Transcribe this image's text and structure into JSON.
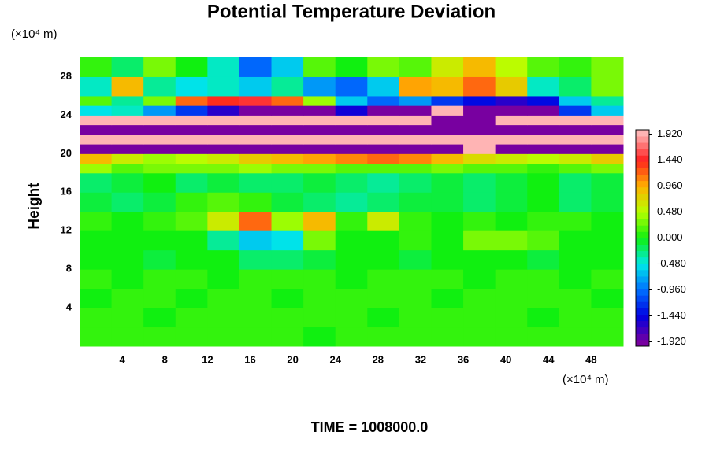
{
  "chart_data": {
    "type": "heatmap",
    "title": "Potential Temperature Deviation",
    "x_unit": "(×10⁴ m)",
    "y_unit": "(×10⁴ m)",
    "y_label": "Height",
    "footer": "TIME = 1008000.0",
    "xlim": [
      0,
      51
    ],
    "ylim": [
      0,
      30
    ],
    "xticks": [
      4,
      8,
      12,
      16,
      20,
      24,
      28,
      32,
      36,
      40,
      44,
      48
    ],
    "yticks": [
      4,
      8,
      12,
      16,
      20,
      24,
      28
    ],
    "xbins": [
      0,
      3,
      6,
      9,
      12,
      15,
      18,
      21,
      24,
      27,
      30,
      33,
      36,
      39,
      42,
      45,
      48,
      51
    ],
    "ybins": [
      0,
      2,
      4,
      6,
      8,
      10,
      12,
      14,
      16,
      18,
      19,
      20,
      21,
      22,
      23,
      24,
      25,
      26,
      28,
      30
    ],
    "values": [
      [
        0.1,
        0.1,
        0.1,
        0.1,
        0.1,
        0.1,
        0.1,
        0.0,
        0.1,
        0.1,
        0.1,
        0.1,
        0.1,
        0.1,
        0.1,
        0.1,
        0.1
      ],
      [
        0.1,
        0.1,
        0.0,
        0.1,
        0.1,
        0.1,
        0.1,
        0.1,
        0.1,
        0.0,
        0.1,
        0.1,
        0.1,
        0.1,
        0.0,
        0.1,
        0.1
      ],
      [
        0.0,
        0.1,
        0.1,
        0.0,
        0.1,
        0.1,
        0.0,
        0.1,
        0.1,
        0.1,
        0.1,
        0.0,
        0.1,
        0.1,
        0.1,
        0.1,
        0.0
      ],
      [
        0.1,
        0.0,
        0.1,
        0.1,
        0.0,
        0.1,
        0.1,
        0.1,
        0.0,
        0.1,
        0.1,
        0.1,
        0.0,
        0.1,
        0.1,
        0.0,
        0.1
      ],
      [
        0.0,
        0.0,
        -0.1,
        0.0,
        0.0,
        -0.2,
        -0.2,
        -0.1,
        0.0,
        0.0,
        -0.1,
        0.0,
        0.0,
        0.0,
        -0.1,
        0.0,
        0.0
      ],
      [
        0.0,
        0.0,
        0.0,
        0.0,
        -0.3,
        -0.6,
        -0.5,
        0.3,
        0.0,
        0.0,
        0.1,
        0.0,
        0.3,
        0.3,
        0.2,
        0.0,
        0.0
      ],
      [
        0.1,
        0.0,
        0.1,
        0.2,
        0.6,
        1.2,
        0.4,
        0.9,
        0.1,
        0.6,
        0.1,
        0.0,
        0.1,
        0.0,
        0.1,
        0.1,
        0.0
      ],
      [
        -0.1,
        -0.2,
        -0.1,
        0.1,
        0.2,
        0.1,
        -0.1,
        -0.2,
        -0.3,
        -0.2,
        -0.1,
        -0.1,
        -0.2,
        -0.1,
        0.0,
        -0.2,
        -0.1
      ],
      [
        -0.2,
        -0.1,
        0.0,
        -0.2,
        -0.1,
        -0.2,
        -0.2,
        -0.1,
        -0.2,
        -0.3,
        -0.2,
        -0.1,
        -0.2,
        -0.1,
        0.0,
        -0.2,
        -0.1
      ],
      [
        0.4,
        0.2,
        0.3,
        0.3,
        0.3,
        0.4,
        0.3,
        0.3,
        0.2,
        0.2,
        0.2,
        0.3,
        0.2,
        0.2,
        0.1,
        0.2,
        0.3
      ],
      [
        0.9,
        0.6,
        0.4,
        0.5,
        0.6,
        0.8,
        0.9,
        1.0,
        1.1,
        1.2,
        1.1,
        0.9,
        0.7,
        0.6,
        0.5,
        0.6,
        0.8
      ],
      [
        -1.92,
        -1.92,
        -1.92,
        -1.92,
        -1.92,
        -1.92,
        -1.92,
        -1.92,
        -1.92,
        -1.92,
        -1.92,
        -1.92,
        1.92,
        -1.92,
        -1.92,
        -1.92,
        -1.92
      ],
      [
        1.92,
        1.92,
        1.92,
        1.92,
        1.92,
        1.92,
        1.92,
        1.92,
        1.92,
        1.92,
        1.92,
        1.92,
        1.92,
        1.92,
        1.92,
        1.92,
        1.92
      ],
      [
        -1.92,
        -1.92,
        -1.92,
        -1.92,
        -1.92,
        -1.92,
        -1.92,
        -1.92,
        -1.92,
        -1.92,
        -1.92,
        -1.92,
        -1.92,
        -1.92,
        -1.92,
        -1.92,
        -1.92
      ],
      [
        1.92,
        1.92,
        1.92,
        1.92,
        1.92,
        1.92,
        1.92,
        1.92,
        1.92,
        1.92,
        1.92,
        -1.92,
        -1.92,
        1.92,
        1.92,
        1.92,
        1.92
      ],
      [
        -0.5,
        -0.4,
        -0.8,
        -1.2,
        -1.6,
        -1.92,
        -1.92,
        -1.92,
        -1.5,
        -1.92,
        -1.92,
        1.92,
        -1.92,
        -1.92,
        -1.92,
        -1.2,
        -0.6
      ],
      [
        0.2,
        -0.3,
        0.3,
        1.2,
        1.4,
        1.5,
        1.2,
        0.4,
        -0.6,
        -1.0,
        -0.8,
        -1.2,
        -1.4,
        -1.6,
        -1.4,
        -0.6,
        -0.3
      ],
      [
        -0.4,
        0.9,
        -0.3,
        -0.5,
        -0.4,
        -0.6,
        -0.3,
        -0.8,
        -1.0,
        -0.6,
        1.0,
        0.9,
        1.2,
        0.8,
        -0.4,
        -0.2,
        0.3
      ],
      [
        0.1,
        -0.2,
        0.3,
        0.0,
        -0.4,
        -1.0,
        -0.6,
        0.2,
        0.0,
        0.3,
        0.2,
        0.6,
        0.9,
        0.5,
        0.2,
        0.1,
        0.3
      ]
    ],
    "clim": [
      -2,
      2
    ],
    "colorscale": [
      [
        -1.92,
        "#7800a0"
      ],
      [
        -1.44,
        "#0000e0"
      ],
      [
        -0.96,
        "#0070ff"
      ],
      [
        -0.48,
        "#00e8e8"
      ],
      [
        0,
        "#10f010"
      ],
      [
        0.48,
        "#b8ff00"
      ],
      [
        0.96,
        "#ffb000"
      ],
      [
        1.44,
        "#ff2020"
      ],
      [
        1.92,
        "#ffb4b4"
      ]
    ],
    "cticks": [
      {
        "value": 1.92,
        "label": "1.920"
      },
      {
        "value": 1.44,
        "label": "1.440"
      },
      {
        "value": 0.96,
        "label": "0.960"
      },
      {
        "value": 0.48,
        "label": "0.480"
      },
      {
        "value": 0,
        "label": "0.000"
      },
      {
        "value": -0.48,
        "label": "-0.480"
      },
      {
        "value": -0.96,
        "label": "-0.960"
      },
      {
        "value": -1.44,
        "label": "-1.440"
      },
      {
        "value": -1.92,
        "label": "-1.920"
      }
    ]
  }
}
